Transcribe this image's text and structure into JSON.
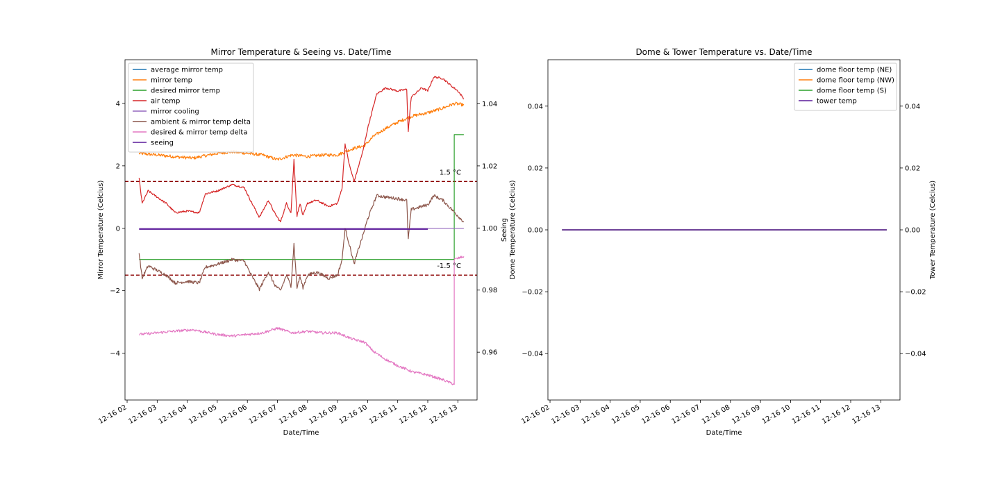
{
  "chart_data": [
    {
      "type": "line",
      "title": "Mirror Temperature & Seeing vs. Date/Time",
      "xlabel": "Date/Time",
      "ylabel": "Mirror Temperature (Celcius)",
      "ylabel_right": "Seeing",
      "x_ticks": [
        "12-16 02",
        "12-16 03",
        "12-16 04",
        "12-16 05",
        "12-16 06",
        "12-16 07",
        "12-16 08",
        "12-16 09",
        "12-16 10",
        "12-16 11",
        "12-16 12",
        "12-16 13"
      ],
      "xlim": [
        1.93,
        13.64
      ],
      "ylim": [
        -5.5,
        5.4
      ],
      "y_ticks": [
        -4,
        -2,
        0,
        2,
        4
      ],
      "ylim_right": [
        0.9446,
        1.0542
      ],
      "y_ticks_right": [
        0.96,
        0.98,
        1.0,
        1.02,
        1.04
      ],
      "legend_position": "upper left",
      "hlines": [
        {
          "y": 1.5,
          "label": "1.5 °C",
          "color": "#8b0000"
        },
        {
          "y": -1.5,
          "label": "-1.5 °C",
          "color": "#8b0000"
        }
      ],
      "series": [
        {
          "name": "average mirror temp",
          "color": "#1f77b4",
          "axis": "left",
          "points": []
        },
        {
          "name": "mirror temp",
          "color": "#ff7f0e",
          "axis": "left",
          "noise": 0.05,
          "points": [
            [
              2.4,
              2.4
            ],
            [
              3.0,
              2.35
            ],
            [
              3.5,
              2.3
            ],
            [
              4.2,
              2.25
            ],
            [
              5.0,
              2.4
            ],
            [
              5.5,
              2.45
            ],
            [
              6.5,
              2.35
            ],
            [
              7.0,
              2.2
            ],
            [
              7.5,
              2.35
            ],
            [
              8.0,
              2.3
            ],
            [
              8.5,
              2.35
            ],
            [
              9.0,
              2.35
            ],
            [
              9.5,
              2.55
            ],
            [
              9.9,
              2.65
            ],
            [
              10.2,
              2.95
            ],
            [
              10.6,
              3.2
            ],
            [
              11.0,
              3.4
            ],
            [
              11.5,
              3.6
            ],
            [
              12.0,
              3.7
            ],
            [
              12.5,
              3.85
            ],
            [
              12.9,
              4.0
            ],
            [
              13.2,
              3.95
            ]
          ]
        },
        {
          "name": "desired mirror temp",
          "color": "#2ca02c",
          "axis": "left",
          "points": [
            [
              2.4,
              -1.0
            ],
            [
              12.88,
              -1.0
            ],
            [
              12.88,
              3.0
            ],
            [
              13.2,
              3.0
            ]
          ]
        },
        {
          "name": "air temp",
          "color": "#d62728",
          "axis": "left",
          "noise": 0.03,
          "points": [
            [
              2.4,
              1.6
            ],
            [
              2.5,
              0.8
            ],
            [
              2.7,
              1.2
            ],
            [
              3.0,
              1.0
            ],
            [
              3.3,
              0.8
            ],
            [
              3.6,
              0.5
            ],
            [
              4.0,
              0.55
            ],
            [
              4.4,
              0.5
            ],
            [
              4.6,
              1.1
            ],
            [
              5.0,
              1.2
            ],
            [
              5.5,
              1.4
            ],
            [
              5.9,
              1.3
            ],
            [
              6.1,
              0.9
            ],
            [
              6.4,
              0.35
            ],
            [
              6.7,
              0.9
            ],
            [
              6.9,
              0.5
            ],
            [
              7.1,
              0.2
            ],
            [
              7.3,
              0.8
            ],
            [
              7.45,
              0.5
            ],
            [
              7.55,
              2.2
            ],
            [
              7.65,
              0.4
            ],
            [
              7.75,
              0.8
            ],
            [
              7.85,
              0.4
            ],
            [
              8.0,
              0.8
            ],
            [
              8.3,
              0.9
            ],
            [
              8.7,
              0.7
            ],
            [
              9.0,
              0.8
            ],
            [
              9.15,
              1.3
            ],
            [
              9.25,
              2.7
            ],
            [
              9.4,
              2.0
            ],
            [
              9.55,
              1.5
            ],
            [
              9.7,
              2.0
            ],
            [
              9.85,
              2.5
            ],
            [
              10.0,
              3.2
            ],
            [
              10.3,
              4.3
            ],
            [
              10.6,
              4.5
            ],
            [
              11.0,
              4.4
            ],
            [
              11.3,
              4.45
            ],
            [
              11.35,
              3.1
            ],
            [
              11.45,
              4.2
            ],
            [
              11.8,
              4.5
            ],
            [
              12.0,
              4.4
            ],
            [
              12.2,
              4.85
            ],
            [
              12.5,
              4.8
            ],
            [
              12.8,
              4.55
            ],
            [
              13.0,
              4.4
            ],
            [
              13.2,
              4.15
            ]
          ]
        },
        {
          "name": "mirror cooling",
          "color": "#9467bd",
          "axis": "left",
          "points": [
            [
              2.4,
              0.0
            ],
            [
              13.2,
              0.0
            ]
          ]
        },
        {
          "name": "ambient & mirror temp delta",
          "color": "#8c564b",
          "axis": "left",
          "noise": 0.05,
          "points": [
            [
              2.4,
              -0.8
            ],
            [
              2.5,
              -1.6
            ],
            [
              2.7,
              -1.2
            ],
            [
              3.0,
              -1.35
            ],
            [
              3.3,
              -1.5
            ],
            [
              3.6,
              -1.75
            ],
            [
              4.0,
              -1.7
            ],
            [
              4.4,
              -1.75
            ],
            [
              4.6,
              -1.25
            ],
            [
              5.0,
              -1.15
            ],
            [
              5.5,
              -1.0
            ],
            [
              5.9,
              -1.05
            ],
            [
              6.1,
              -1.45
            ],
            [
              6.4,
              -1.95
            ],
            [
              6.7,
              -1.4
            ],
            [
              6.9,
              -1.8
            ],
            [
              7.1,
              -2.0
            ],
            [
              7.3,
              -1.5
            ],
            [
              7.45,
              -1.85
            ],
            [
              7.55,
              -0.5
            ],
            [
              7.65,
              -1.9
            ],
            [
              7.75,
              -1.55
            ],
            [
              7.85,
              -1.9
            ],
            [
              8.0,
              -1.5
            ],
            [
              8.3,
              -1.4
            ],
            [
              8.7,
              -1.6
            ],
            [
              9.0,
              -1.5
            ],
            [
              9.15,
              -1.0
            ],
            [
              9.25,
              0.0
            ],
            [
              9.4,
              -0.55
            ],
            [
              9.55,
              -1.15
            ],
            [
              9.7,
              -0.65
            ],
            [
              9.85,
              -0.2
            ],
            [
              10.0,
              0.3
            ],
            [
              10.3,
              1.05
            ],
            [
              10.6,
              1.0
            ],
            [
              11.0,
              0.95
            ],
            [
              11.3,
              0.9
            ],
            [
              11.35,
              -0.35
            ],
            [
              11.45,
              0.6
            ],
            [
              11.8,
              0.7
            ],
            [
              12.0,
              0.75
            ],
            [
              12.2,
              1.05
            ],
            [
              12.5,
              0.9
            ],
            [
              12.8,
              0.6
            ],
            [
              13.0,
              0.4
            ],
            [
              13.2,
              0.2
            ]
          ]
        },
        {
          "name": "desired & mirror temp delta",
          "color": "#e377c2",
          "axis": "left",
          "noise": 0.04,
          "points": [
            [
              2.4,
              -3.4
            ],
            [
              3.0,
              -3.35
            ],
            [
              3.5,
              -3.3
            ],
            [
              4.2,
              -3.25
            ],
            [
              5.0,
              -3.4
            ],
            [
              5.5,
              -3.45
            ],
            [
              6.5,
              -3.35
            ],
            [
              7.0,
              -3.2
            ],
            [
              7.5,
              -3.35
            ],
            [
              8.0,
              -3.3
            ],
            [
              8.5,
              -3.35
            ],
            [
              9.0,
              -3.35
            ],
            [
              9.5,
              -3.55
            ],
            [
              9.9,
              -3.65
            ],
            [
              10.2,
              -3.95
            ],
            [
              10.6,
              -4.2
            ],
            [
              11.0,
              -4.4
            ],
            [
              11.5,
              -4.6
            ],
            [
              12.0,
              -4.7
            ],
            [
              12.5,
              -4.85
            ],
            [
              12.88,
              -5.0
            ],
            [
              12.88,
              -1.0
            ],
            [
              13.2,
              -0.9
            ]
          ]
        },
        {
          "name": "seeing",
          "color": "#5a1a9a",
          "axis": "right",
          "points": [
            [
              2.4,
              0.9996
            ],
            [
              12.0,
              0.9996
            ]
          ]
        }
      ]
    },
    {
      "type": "line",
      "title": "Dome & Tower Temperature vs. Date/Time",
      "xlabel": "Date/Time",
      "ylabel": "Dome Temperature (Celcius)",
      "ylabel_right": "Tower Temperature (Celcius)",
      "x_ticks": [
        "12-16 02",
        "12-16 03",
        "12-16 04",
        "12-16 05",
        "12-16 06",
        "12-16 07",
        "12-16 08",
        "12-16 09",
        "12-16 10",
        "12-16 11",
        "12-16 12",
        "12-16 13"
      ],
      "xlim": [
        1.93,
        13.64
      ],
      "ylim": [
        -0.055,
        0.055
      ],
      "y_ticks": [
        -0.04,
        -0.02,
        0.0,
        0.02,
        0.04
      ],
      "y_tick_labels": [
        "−0.04",
        "−0.02",
        "0.00",
        "0.02",
        "0.04"
      ],
      "ylim_right": [
        -0.055,
        0.055
      ],
      "y_ticks_right": [
        -0.04,
        -0.02,
        0.0,
        0.02,
        0.04
      ],
      "y_tick_labels_right": [
        "−0.04",
        "−0.02",
        "0.00",
        "0.02",
        "0.04"
      ],
      "legend_position": "upper right",
      "series": [
        {
          "name": "dome floor temp (NE)",
          "color": "#1f77b4",
          "axis": "left",
          "points": [
            [
              2.4,
              0.0
            ],
            [
              13.2,
              0.0
            ]
          ]
        },
        {
          "name": "dome floor temp (NW)",
          "color": "#ff7f0e",
          "axis": "left",
          "points": [
            [
              2.4,
              0.0
            ],
            [
              13.2,
              0.0
            ]
          ]
        },
        {
          "name": "dome floor temp (S)",
          "color": "#2ca02c",
          "axis": "left",
          "points": [
            [
              2.4,
              0.0
            ],
            [
              13.2,
              0.0
            ]
          ]
        },
        {
          "name": "tower temp",
          "color": "#5a1a9a",
          "axis": "right",
          "points": [
            [
              2.4,
              0.0
            ],
            [
              13.2,
              0.0
            ]
          ]
        }
      ]
    }
  ]
}
